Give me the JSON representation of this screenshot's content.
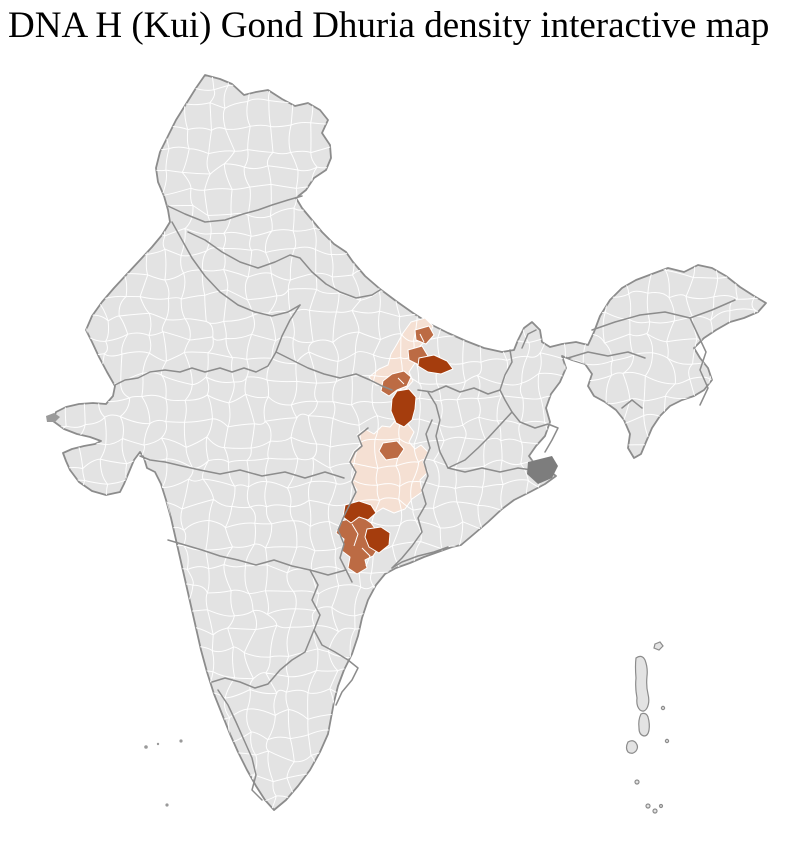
{
  "title": "DNA H (Kui) Gond Dhuria density interactive map",
  "map": {
    "country": "India",
    "colors": {
      "land": "#e3e3e3",
      "district_border": "#ffffff",
      "state_border": "#8c8c8c",
      "outline": "#8c8c8c",
      "delta_patch": "#7d7d7d",
      "small_island": "#9a9a9a",
      "density_low": "#f5e0d3",
      "density_medium": "#bc6b44",
      "density_high": "#a53d0d"
    }
  }
}
